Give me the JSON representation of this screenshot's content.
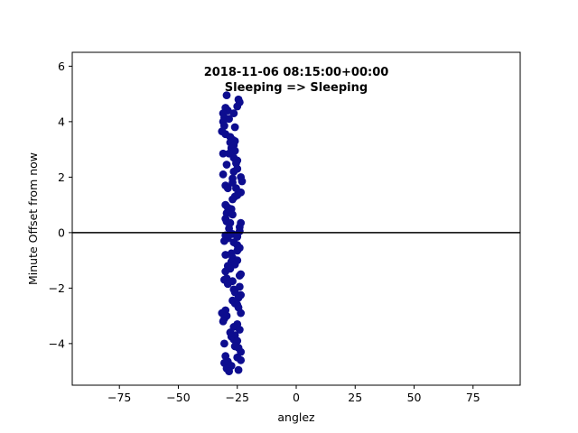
{
  "chart_data": {
    "type": "scatter",
    "title": "2018-11-06 08:15:00+00:00",
    "subtitle": "Sleeping => Sleeping",
    "xlabel": "anglez",
    "ylabel": "Minute Offset from now",
    "xlim": [
      -95,
      95
    ],
    "ylim": [
      -5.5,
      6.5
    ],
    "x_ticks": [
      -75,
      -50,
      -25,
      0,
      25,
      50,
      75
    ],
    "x_tick_labels": [
      "−75",
      "−50",
      "−25",
      "0",
      "25",
      "50",
      "75"
    ],
    "y_ticks": [
      -4,
      -2,
      0,
      2,
      4,
      6
    ],
    "y_tick_labels": [
      "−4",
      "−2",
      "0",
      "2",
      "4",
      "6"
    ],
    "hline_y": 0,
    "grid": false,
    "marker_color": "#0d0d8f",
    "hline_color": "#000000",
    "points": [
      [
        -29.5,
        4.95
      ],
      [
        -24.5,
        4.8
      ],
      [
        -24.0,
        4.7
      ],
      [
        -25.0,
        4.55
      ],
      [
        -30.0,
        4.5
      ],
      [
        -29.0,
        4.4
      ],
      [
        -31.0,
        4.3
      ],
      [
        -26.5,
        4.3
      ],
      [
        -30.5,
        4.15
      ],
      [
        -28.5,
        4.1
      ],
      [
        -31.0,
        4.0
      ],
      [
        -30.5,
        3.85
      ],
      [
        -26.0,
        3.8
      ],
      [
        -31.5,
        3.65
      ],
      [
        -30.0,
        3.55
      ],
      [
        -28.0,
        3.45
      ],
      [
        -27.0,
        3.35
      ],
      [
        -26.0,
        3.3
      ],
      [
        -28.0,
        3.25
      ],
      [
        -26.5,
        3.15
      ],
      [
        -27.5,
        3.05
      ],
      [
        -26.0,
        2.95
      ],
      [
        -28.5,
        2.85
      ],
      [
        -31.0,
        2.85
      ],
      [
        -26.5,
        2.7
      ],
      [
        -25.0,
        2.6
      ],
      [
        -25.5,
        2.5
      ],
      [
        -29.5,
        2.45
      ],
      [
        -25.0,
        2.3
      ],
      [
        -26.5,
        2.2
      ],
      [
        -31.0,
        2.1
      ],
      [
        -23.5,
        2.0
      ],
      [
        -27.0,
        1.95
      ],
      [
        -23.0,
        1.85
      ],
      [
        -27.0,
        1.8
      ],
      [
        -30.0,
        1.7
      ],
      [
        -29.0,
        1.6
      ],
      [
        -25.5,
        1.6
      ],
      [
        -23.5,
        1.45
      ],
      [
        -25.0,
        1.35
      ],
      [
        -26.0,
        1.3
      ],
      [
        -27.0,
        1.2
      ],
      [
        -30.0,
        1.0
      ],
      [
        -29.0,
        0.9
      ],
      [
        -27.5,
        0.85
      ],
      [
        -29.5,
        0.7
      ],
      [
        -27.0,
        0.65
      ],
      [
        -30.0,
        0.5
      ],
      [
        -29.5,
        0.4
      ],
      [
        -28.0,
        0.35
      ],
      [
        -23.5,
        0.35
      ],
      [
        -24.0,
        0.2
      ],
      [
        -28.5,
        0.15
      ],
      [
        -24.0,
        0.05
      ],
      [
        -27.0,
        -0.05
      ],
      [
        -30.0,
        -0.1
      ],
      [
        -25.0,
        -0.15
      ],
      [
        -29.0,
        -0.2
      ],
      [
        -30.5,
        -0.3
      ],
      [
        -26.5,
        -0.35
      ],
      [
        -25.0,
        -0.45
      ],
      [
        -24.0,
        -0.55
      ],
      [
        -25.0,
        -0.65
      ],
      [
        -27.5,
        -0.75
      ],
      [
        -30.0,
        -0.8
      ],
      [
        -27.0,
        -0.9
      ],
      [
        -25.0,
        -1.0
      ],
      [
        -27.5,
        -1.05
      ],
      [
        -26.0,
        -1.15
      ],
      [
        -29.0,
        -1.2
      ],
      [
        -28.0,
        -1.3
      ],
      [
        -30.0,
        -1.4
      ],
      [
        -23.5,
        -1.5
      ],
      [
        -24.0,
        -1.55
      ],
      [
        -29.5,
        -1.65
      ],
      [
        -30.5,
        -1.7
      ],
      [
        -27.0,
        -1.75
      ],
      [
        -29.0,
        -1.85
      ],
      [
        -24.0,
        -1.95
      ],
      [
        -26.5,
        -2.05
      ],
      [
        -26.0,
        -2.15
      ],
      [
        -23.5,
        -2.25
      ],
      [
        -24.5,
        -2.35
      ],
      [
        -27.0,
        -2.45
      ],
      [
        -26.0,
        -2.55
      ],
      [
        -25.0,
        -2.6
      ],
      [
        -24.5,
        -2.7
      ],
      [
        -30.0,
        -2.8
      ],
      [
        -31.5,
        -2.9
      ],
      [
        -23.5,
        -2.9
      ],
      [
        -29.5,
        -3.0
      ],
      [
        -30.5,
        -3.1
      ],
      [
        -31.0,
        -3.2
      ],
      [
        -25.0,
        -3.3
      ],
      [
        -26.5,
        -3.4
      ],
      [
        -24.0,
        -3.5
      ],
      [
        -28.0,
        -3.6
      ],
      [
        -26.0,
        -3.7
      ],
      [
        -27.5,
        -3.75
      ],
      [
        -26.5,
        -3.85
      ],
      [
        -25.0,
        -3.9
      ],
      [
        -30.5,
        -4.0
      ],
      [
        -26.0,
        -4.1
      ],
      [
        -24.5,
        -4.15
      ],
      [
        -23.5,
        -4.3
      ],
      [
        -30.0,
        -4.45
      ],
      [
        -25.0,
        -4.5
      ],
      [
        -23.5,
        -4.6
      ],
      [
        -29.0,
        -4.65
      ],
      [
        -30.5,
        -4.7
      ],
      [
        -27.5,
        -4.8
      ],
      [
        -29.5,
        -4.9
      ],
      [
        -24.5,
        -4.95
      ],
      [
        -28.5,
        -5.0
      ]
    ]
  }
}
